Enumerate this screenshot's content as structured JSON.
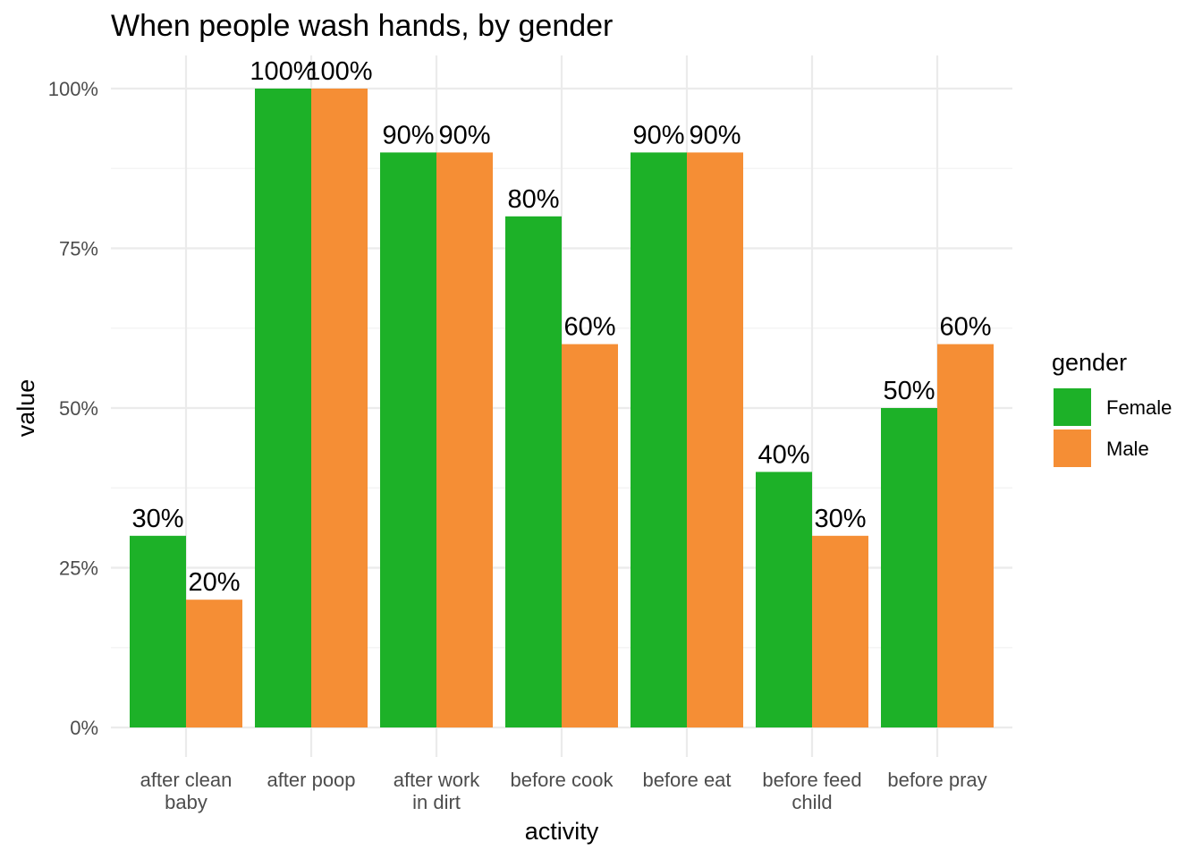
{
  "chart_data": {
    "type": "bar",
    "title": "When people wash hands, by gender",
    "xlabel": "activity",
    "ylabel": "value",
    "ylim": [
      0,
      1
    ],
    "yticks": [
      0,
      0.25,
      0.5,
      0.75,
      1.0
    ],
    "ytick_labels": [
      "0%",
      "25%",
      "50%",
      "75%",
      "100%"
    ],
    "categories": [
      "after clean\nbaby",
      "after poop",
      "after work\nin dirt",
      "before cook",
      "before eat",
      "before feed\nchild",
      "before pray"
    ],
    "series": [
      {
        "name": "Female",
        "color": "#1DB128",
        "values": [
          0.3,
          1.0,
          0.9,
          0.8,
          0.9,
          0.4,
          0.5
        ],
        "labels": [
          "30%",
          "100%",
          "90%",
          "80%",
          "90%",
          "40%",
          "50%"
        ]
      },
      {
        "name": "Male",
        "color": "#F58E35",
        "values": [
          0.2,
          1.0,
          0.9,
          0.6,
          0.9,
          0.3,
          0.6
        ],
        "labels": [
          "20%",
          "100%",
          "90%",
          "60%",
          "90%",
          "30%",
          "60%"
        ]
      }
    ],
    "legend": {
      "title": "gender",
      "position": "right"
    },
    "grid": true
  }
}
